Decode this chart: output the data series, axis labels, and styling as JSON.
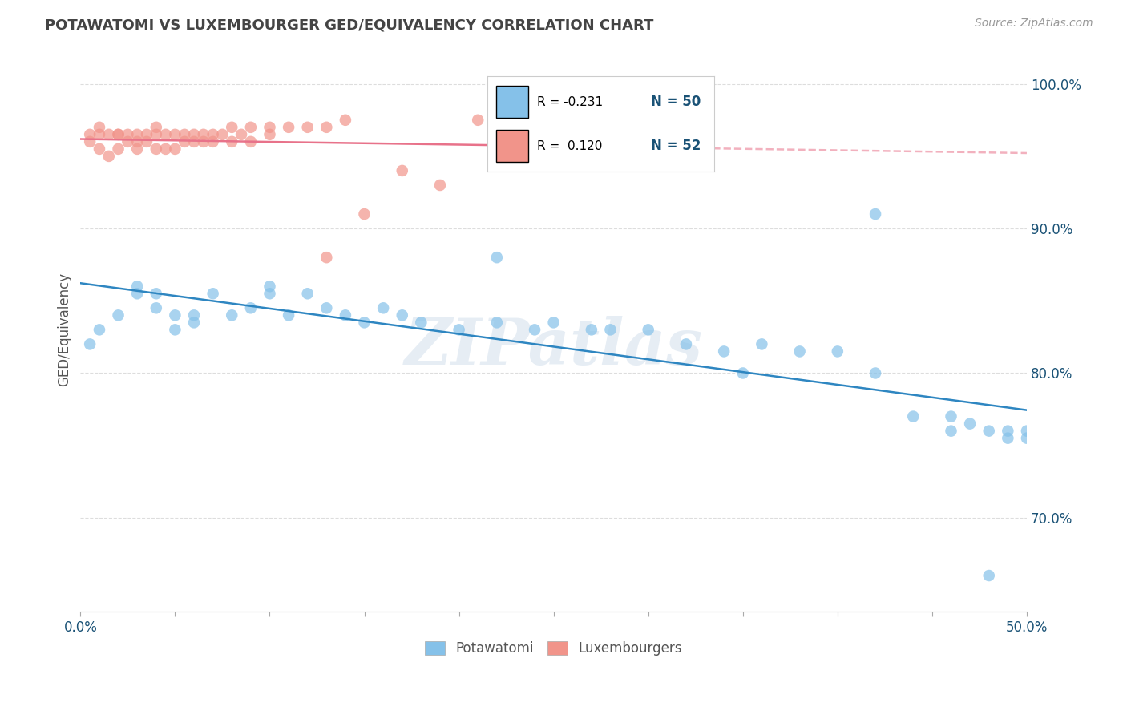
{
  "title": "POTAWATOMI VS LUXEMBOURGER GED/EQUIVALENCY CORRELATION CHART",
  "source": "Source: ZipAtlas.com",
  "ylabel_label": "GED/Equivalency",
  "xlim": [
    0.0,
    0.5
  ],
  "ylim": [
    0.635,
    1.025
  ],
  "ytick_positions": [
    0.7,
    0.8,
    0.9,
    1.0
  ],
  "ytick_labels": [
    "70.0%",
    "80.0%",
    "90.0%",
    "100.0%"
  ],
  "xtick_positions": [
    0.0,
    0.05,
    0.1,
    0.15,
    0.2,
    0.25,
    0.3,
    0.35,
    0.4,
    0.45,
    0.5
  ],
  "xtick_major_positions": [
    0.0,
    0.5
  ],
  "xtick_labels_shown": [
    "0.0%",
    "50.0%"
  ],
  "color_potawatomi": "#85C1E9",
  "color_luxembourger": "#F1948A",
  "color_line_potawatomi": "#2E86C1",
  "color_line_luxembourger": "#E8728A",
  "color_grid": "#DDDDDD",
  "color_r_value": "#1A5276",
  "potawatomi_x": [
    0.005,
    0.01,
    0.02,
    0.03,
    0.03,
    0.04,
    0.04,
    0.05,
    0.05,
    0.06,
    0.06,
    0.07,
    0.08,
    0.09,
    0.1,
    0.1,
    0.11,
    0.12,
    0.13,
    0.14,
    0.15,
    0.16,
    0.17,
    0.18,
    0.2,
    0.22,
    0.24,
    0.25,
    0.27,
    0.28,
    0.3,
    0.32,
    0.34,
    0.36,
    0.38,
    0.4,
    0.42,
    0.44,
    0.46,
    0.46,
    0.47,
    0.48,
    0.49,
    0.49,
    0.5,
    0.5,
    0.22,
    0.35,
    0.42,
    0.48
  ],
  "potawatomi_y": [
    0.82,
    0.83,
    0.84,
    0.86,
    0.855,
    0.845,
    0.855,
    0.83,
    0.84,
    0.835,
    0.84,
    0.855,
    0.84,
    0.845,
    0.86,
    0.855,
    0.84,
    0.855,
    0.845,
    0.84,
    0.835,
    0.845,
    0.84,
    0.835,
    0.83,
    0.835,
    0.83,
    0.835,
    0.83,
    0.83,
    0.83,
    0.82,
    0.815,
    0.82,
    0.815,
    0.815,
    0.8,
    0.77,
    0.76,
    0.77,
    0.765,
    0.76,
    0.755,
    0.76,
    0.76,
    0.755,
    0.88,
    0.8,
    0.91,
    0.66
  ],
  "luxembourger_x": [
    0.005,
    0.005,
    0.01,
    0.01,
    0.01,
    0.015,
    0.015,
    0.02,
    0.02,
    0.02,
    0.025,
    0.025,
    0.03,
    0.03,
    0.03,
    0.035,
    0.035,
    0.04,
    0.04,
    0.04,
    0.045,
    0.045,
    0.05,
    0.05,
    0.055,
    0.055,
    0.06,
    0.06,
    0.065,
    0.065,
    0.07,
    0.07,
    0.075,
    0.08,
    0.08,
    0.085,
    0.09,
    0.09,
    0.1,
    0.1,
    0.11,
    0.12,
    0.13,
    0.14,
    0.15,
    0.17,
    0.19,
    0.21,
    0.23,
    0.25,
    0.13,
    0.24
  ],
  "luxembourger_y": [
    0.965,
    0.96,
    0.965,
    0.955,
    0.97,
    0.965,
    0.95,
    0.965,
    0.955,
    0.965,
    0.96,
    0.965,
    0.965,
    0.96,
    0.955,
    0.965,
    0.96,
    0.965,
    0.97,
    0.955,
    0.965,
    0.955,
    0.965,
    0.955,
    0.965,
    0.96,
    0.965,
    0.96,
    0.965,
    0.96,
    0.965,
    0.96,
    0.965,
    0.97,
    0.96,
    0.965,
    0.97,
    0.96,
    0.97,
    0.965,
    0.97,
    0.97,
    0.97,
    0.975,
    0.91,
    0.94,
    0.93,
    0.975,
    0.975,
    0.975,
    0.88,
    0.97
  ],
  "watermark_text": "ZIPatlas",
  "background_color": "#FFFFFF"
}
